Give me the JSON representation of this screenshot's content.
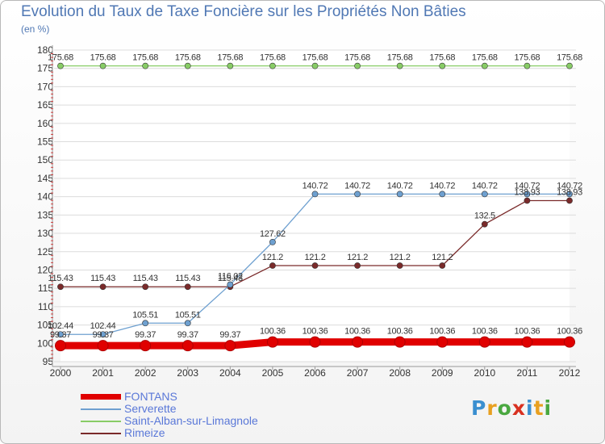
{
  "chart_data": {
    "type": "line",
    "title": "Evolution du Taux de Taxe Foncière sur les Propriétés Non Bâties",
    "ylabel": "(en %)",
    "xlabel": "",
    "categories": [
      "2000",
      "2001",
      "2002",
      "2003",
      "2004",
      "2005",
      "2006",
      "2007",
      "2008",
      "2009",
      "2010",
      "2011",
      "2012"
    ],
    "ylim": [
      95,
      180
    ],
    "yticks": [
      95,
      100,
      105,
      110,
      115,
      120,
      125,
      130,
      135,
      140,
      145,
      150,
      155,
      160,
      165,
      170,
      175,
      180
    ],
    "grid": "horizontal",
    "series": [
      {
        "name": "FONTANS",
        "color": "#e00000",
        "values": [
          99.37,
          99.37,
          99.37,
          99.37,
          99.37,
          100.36,
          100.36,
          100.36,
          100.36,
          100.36,
          100.36,
          100.36,
          100.36
        ],
        "labels": [
          "99.37",
          "99.37",
          "99.37",
          "99.37",
          "99.37",
          "100.36",
          "100.36",
          "100.36",
          "100.36",
          "100.36",
          "100.36",
          "100.36",
          "100.36"
        ]
      },
      {
        "name": "Serverette",
        "color": "#6ea0d0",
        "values": [
          102.44,
          102.44,
          105.51,
          105.51,
          116.02,
          127.62,
          140.72,
          140.72,
          140.72,
          140.72,
          140.72,
          140.72,
          140.72
        ],
        "labels": [
          "102.44",
          "102.44",
          "105.51",
          "105.51",
          "116.02",
          "127.62",
          "140.72",
          "140.72",
          "140.72",
          "140.72",
          "140.72",
          "140.72",
          "140.72"
        ]
      },
      {
        "name": "Saint-Alban-sur-Limagnole",
        "color": "#88cc66",
        "values": [
          175.68,
          175.68,
          175.68,
          175.68,
          175.68,
          175.68,
          175.68,
          175.68,
          175.68,
          175.68,
          175.68,
          175.68,
          175.68
        ],
        "labels": [
          "175.68",
          "175.68",
          "175.68",
          "175.68",
          "175.68",
          "175.68",
          "175.68",
          "175.68",
          "175.68",
          "175.68",
          "175.68",
          "175.68",
          "175.68"
        ]
      },
      {
        "name": "Rimeize",
        "color": "#7a2a2a",
        "values": [
          115.43,
          115.43,
          115.43,
          115.43,
          115.43,
          121.2,
          121.2,
          121.2,
          121.2,
          121.2,
          132.5,
          138.93,
          138.93
        ],
        "labels": [
          "115.43",
          "115.43",
          "115.43",
          "115.43",
          "115.43",
          "121.2",
          "121.2",
          "121.2",
          "121.2",
          "121.2",
          "132.5",
          "138.93",
          "138.93"
        ]
      }
    ]
  },
  "legend": {
    "items": [
      {
        "label": "FONTANS",
        "color": "#e00000"
      },
      {
        "label": "Serverette",
        "color": "#6ea0d0"
      },
      {
        "label": "Saint-Alban-sur-Limagnole",
        "color": "#88cc66"
      },
      {
        "label": "Rimeize",
        "color": "#7a2a2a"
      }
    ]
  },
  "logo": {
    "letters": [
      "P",
      "r",
      "o",
      "x",
      "i",
      "t",
      "i"
    ],
    "colors": [
      "#3a8fd0",
      "#e8a020",
      "#4aa840",
      "#d83020",
      "#3a8fd0",
      "#e8a020",
      "#4aa840"
    ]
  }
}
